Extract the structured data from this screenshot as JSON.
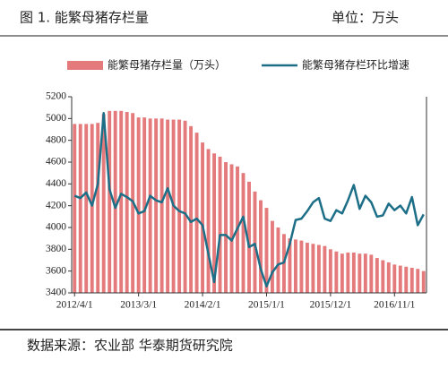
{
  "chart_data": {
    "type": "bar_line",
    "title": "图 1. 能繁母猪存栏量",
    "unit": "单位：万头",
    "source": "数据来源：农业部 华泰期货研究院",
    "categories": [
      "2012/4/1",
      null,
      null,
      null,
      null,
      null,
      null,
      null,
      null,
      null,
      null,
      "2013/3/1",
      null,
      null,
      null,
      null,
      null,
      null,
      null,
      null,
      null,
      null,
      "2014/2/1",
      null,
      null,
      null,
      null,
      null,
      null,
      null,
      null,
      null,
      null,
      "2015/1/1",
      null,
      null,
      null,
      null,
      null,
      null,
      null,
      null,
      null,
      null,
      "2015/12/1",
      null,
      null,
      null,
      null,
      null,
      null,
      null,
      null,
      null,
      null,
      "2016/11/1",
      null,
      null,
      null,
      null,
      null
    ],
    "series": [
      {
        "name": "能繁母猪存栏量（万头）",
        "type": "bar",
        "color": "#e47a7c",
        "values": [
          4950,
          4950,
          4950,
          4950,
          4960,
          5040,
          5070,
          5070,
          5070,
          5060,
          5050,
          5010,
          5010,
          5000,
          5000,
          5000,
          4990,
          4990,
          4990,
          4980,
          4930,
          4870,
          4780,
          4720,
          4680,
          4650,
          4600,
          4580,
          4560,
          4500,
          4420,
          4330,
          4250,
          4180,
          4060,
          4000,
          3940,
          3900,
          3890,
          3880,
          3860,
          3850,
          3840,
          3830,
          3800,
          3780,
          3760,
          3770,
          3770,
          3760,
          3760,
          3750,
          3720,
          3700,
          3680,
          3660,
          3650,
          3640,
          3630,
          3620,
          3600
        ]
      },
      {
        "name": "能繁母猪存栏环比增速",
        "type": "line",
        "axis": "y2",
        "color": "#1d6e87",
        "values": [
          -1.03,
          -1.1,
          -0.93,
          -1.33,
          -0.67,
          1.5,
          -0.83,
          -1.4,
          -0.97,
          -1.07,
          -1.2,
          -1.57,
          -1.5,
          -1.03,
          -1.17,
          -1.23,
          -0.8,
          -1.33,
          -1.5,
          -1.57,
          -1.83,
          -1.73,
          -1.93,
          -2.8,
          -3.67,
          -2.23,
          -2.23,
          -2.4,
          -2.03,
          -1.67,
          -2.6,
          -2.5,
          -3.27,
          -3.8,
          -3.37,
          -3.13,
          -3.07,
          -2.5,
          -1.77,
          -1.73,
          -1.5,
          -1.23,
          -1.1,
          -1.73,
          -1.8,
          -1.47,
          -1.57,
          -1.17,
          -0.7,
          -1.43,
          -1.03,
          -1.23,
          -1.67,
          -1.63,
          -1.27,
          -1.47,
          -1.33,
          -1.57,
          -1.07,
          -1.93,
          -1.6
        ]
      }
    ],
    "ylim": [
      3400,
      5200
    ],
    "yticks": [
      3400,
      3600,
      3800,
      4000,
      4200,
      4400,
      4600,
      4800,
      5000,
      5200
    ],
    "y2lim": [
      -4,
      2
    ]
  }
}
